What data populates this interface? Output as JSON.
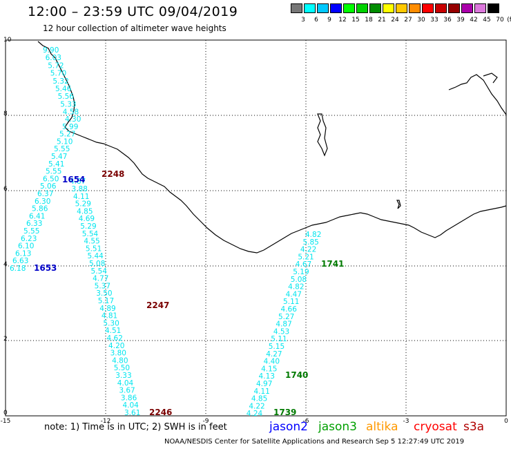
{
  "header": {
    "title": "12:00 – 23:59 UTC 09/04/2019",
    "subtitle": "12 hour collection of altimeter wave heights"
  },
  "colorbar": {
    "unit": "(ft)",
    "colors": [
      "#777777",
      "#00ffff",
      "#00c8ff",
      "#0000ff",
      "#00ff00",
      "#00d200",
      "#008c00",
      "#ffff00",
      "#ffc800",
      "#ff8c00",
      "#ff0000",
      "#c80000",
      "#960000",
      "#aa00aa",
      "#dc78dc",
      "#000000"
    ],
    "labels": [
      "3",
      "6",
      "9",
      "12",
      "15",
      "18",
      "21",
      "24",
      "27",
      "30",
      "33",
      "36",
      "39",
      "42",
      "45",
      "70"
    ]
  },
  "axes": {
    "x_ticks": [
      "-15",
      "-12",
      "-9",
      "-6",
      "-3",
      "0"
    ],
    "y_ticks": [
      "0",
      "2",
      "4",
      "6",
      "8",
      "10"
    ]
  },
  "tracks": [
    {
      "name": "track-west-1653",
      "values": [
        "6.18",
        "6.63",
        "6.13",
        "6.10",
        "6.23",
        "5.55",
        "6.33",
        "6.41",
        "5.86",
        "6.30",
        "6.37",
        "5.06",
        "6.50",
        "5.55",
        "5.41",
        "5.47",
        "5.55",
        "5.10",
        "5.27",
        "5.99",
        "4.30"
      ]
    },
    {
      "name": "track-mid-2247",
      "values": [
        "3.61",
        "4.04",
        "3.86",
        "3.67",
        "4.04",
        "3.33",
        "5.50",
        "4.80",
        "3.80",
        "4.20",
        "4.62",
        "4.51",
        "5.30",
        "4.81",
        "4.89",
        "5.17",
        "3.50",
        "5.37",
        "4.77",
        "5.54",
        "5.08",
        "5.44",
        "5.51",
        "4.55",
        "5.54",
        "5.29",
        "4.69",
        "4.85",
        "5.29",
        "4.11",
        "3.88",
        "4.87"
      ]
    },
    {
      "name": "track-coast",
      "values": [
        "9.90",
        "6.03",
        "5.72",
        "5.70",
        "5.32",
        "5.46",
        "5.56",
        "5.33",
        "4.58"
      ]
    },
    {
      "name": "track-east-1739",
      "values": [
        "4.82",
        "5.85",
        "4.22",
        "5.21",
        "4.67",
        "5.19",
        "5.08",
        "4.82",
        "4.47",
        "5.11",
        "4.66",
        "5.27",
        "4.87",
        "4.53",
        "5.11",
        "5.15",
        "4.27",
        "4.40",
        "4.15",
        "4.13",
        "4.97",
        "4.11",
        "4.85",
        "4.22",
        "4.24"
      ]
    }
  ],
  "pass_labels": [
    {
      "text": "1654",
      "color": "#0000c8"
    },
    {
      "text": "2248",
      "color": "#7a0000"
    },
    {
      "text": "1653",
      "color": "#0000c8"
    },
    {
      "text": "2247",
      "color": "#7a0000"
    },
    {
      "text": "2246",
      "color": "#7a0000"
    },
    {
      "text": "1741",
      "color": "#007a00"
    },
    {
      "text": "1740",
      "color": "#007a00"
    },
    {
      "text": "1739",
      "color": "#007a00"
    }
  ],
  "footer": {
    "note": "note:  1) Time is in UTC;  2) SWH is in feet",
    "legend": [
      {
        "label": "jason2",
        "color": "#0000ff"
      },
      {
        "label": "jason3",
        "color": "#00a000"
      },
      {
        "label": "altika",
        "color": "#ff9900"
      },
      {
        "label": "cryosat",
        "color": "#ff0000"
      },
      {
        "label": "s3a",
        "color": "#b00000"
      }
    ],
    "credit": "NOAA/NESDIS Center for Satellite Applications and Research    Sep  5 12:27:49 UTC 2019"
  }
}
